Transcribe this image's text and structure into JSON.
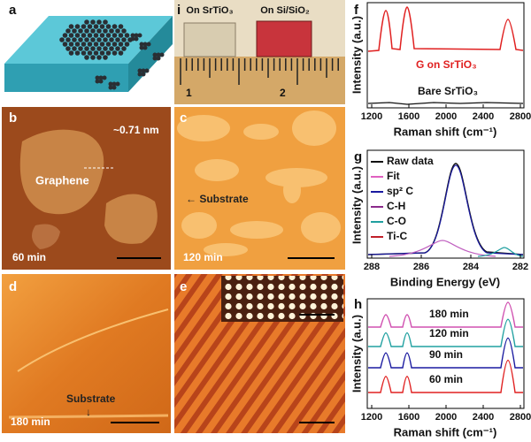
{
  "panels": {
    "a": {
      "label": "a"
    },
    "b": {
      "label": "b",
      "height": "~0.71 nm",
      "feature": "Graphene",
      "time": "60 min"
    },
    "c": {
      "label": "c",
      "feature": "← Substrate",
      "time": "120 min"
    },
    "d": {
      "label": "d",
      "feature": "Substrate",
      "arrow": "↓",
      "time": "180 min"
    },
    "e": {
      "label": "e"
    },
    "i": {
      "label": "i",
      "left": "On SrTiO₃",
      "right": "On Si/SiO₂",
      "ruler": [
        "1",
        "2"
      ]
    },
    "f": {
      "label": "f",
      "ylabel": "Intensity (a.u.)",
      "xlabel": "Raman shift (cm⁻¹)",
      "xticks": [
        "1200",
        "1600",
        "2000",
        "2400",
        "2800"
      ],
      "series": [
        "G on SrTiO₃",
        "Bare SrTiO₃"
      ]
    },
    "g": {
      "label": "g",
      "ylabel": "Intensity (a.u.)",
      "xlabel": "Binding Energy (eV)",
      "xticks": [
        "288",
        "286",
        "284",
        "282"
      ],
      "legend": [
        "Raw data",
        "Fit",
        "sp² C",
        "C-H",
        "C-O",
        "Ti-C"
      ]
    },
    "h": {
      "label": "h",
      "ylabel": "Intensity (a.u.)",
      "xlabel": "Raman shift (cm⁻¹)",
      "xticks": [
        "1200",
        "1600",
        "2000",
        "2400",
        "2800"
      ],
      "series": [
        "180 min",
        "120 min",
        "90 min",
        "60 min"
      ]
    }
  }
}
